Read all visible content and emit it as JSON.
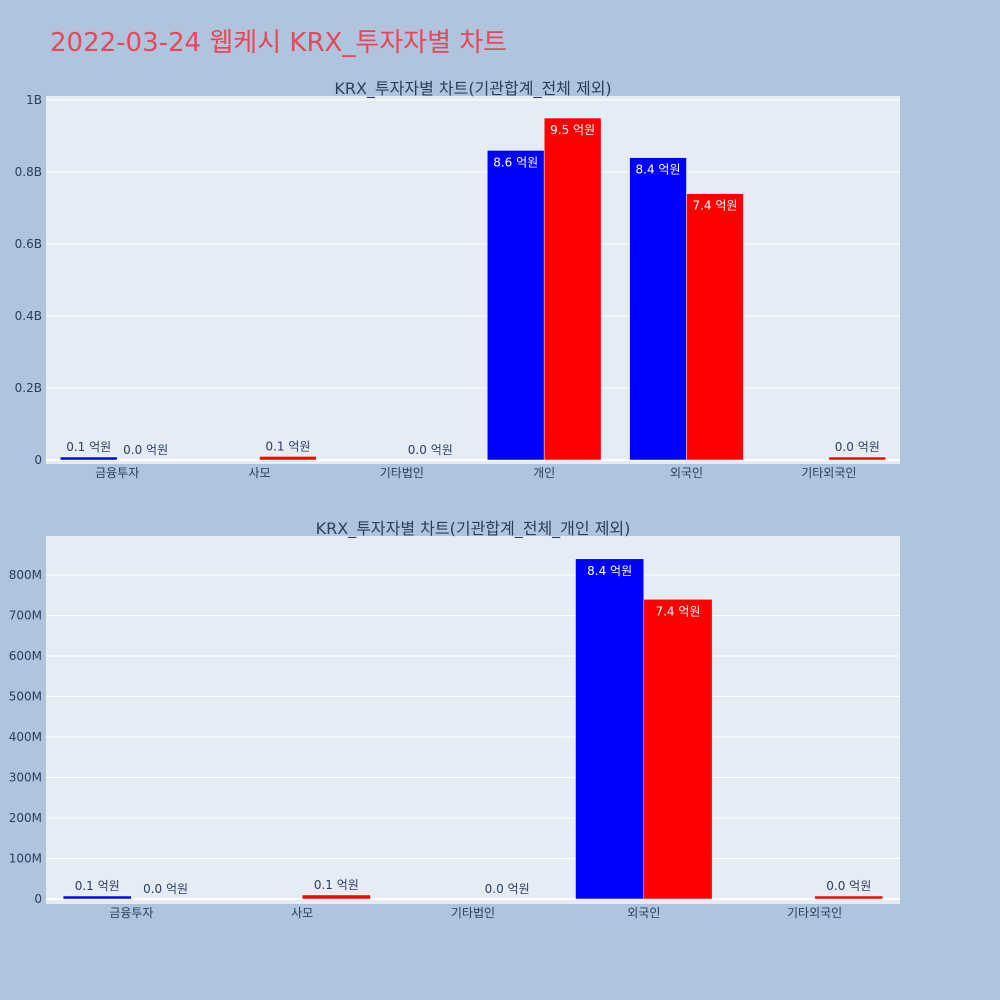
{
  "page": {
    "title": "2022-03-24 웹케시 KRX_투자자별 차트"
  },
  "colors": {
    "background": "#b0c4de",
    "plot_background": "#e5ecf6",
    "title": "#e8465a",
    "series_a": "#0000ff",
    "series_b": "#ff0000",
    "text": "#2a3f5f"
  },
  "chart_data": [
    {
      "type": "bar",
      "title": "KRX_투자자별 차트(기관합계_전체 제외)",
      "categories": [
        "금융투자",
        "사모",
        "기타법인",
        "개인",
        "외국인",
        "기타외국인"
      ],
      "series": [
        {
          "color": "#0000ff",
          "values": [
            5000000,
            0,
            0,
            860000000,
            840000000,
            0
          ],
          "labels": [
            "0.1 억원",
            "",
            "",
            "8.6 억원",
            "8.4 억원",
            ""
          ]
        },
        {
          "color": "#ff0000",
          "values": [
            0,
            10000000,
            0,
            950000000,
            740000000,
            2000000
          ],
          "labels": [
            "0.0 억원",
            "0.1 억원",
            "0.0 억원",
            "9.5 억원",
            "7.4 억원",
            "0.0 억원"
          ]
        }
      ],
      "ylim": [
        0,
        1000000000
      ],
      "yticks": [
        0,
        200000000,
        400000000,
        600000000,
        800000000,
        1000000000
      ],
      "ytick_labels": [
        "0",
        "0.2B",
        "0.4B",
        "0.6B",
        "0.8B",
        "1B"
      ],
      "grid": true,
      "xlabel": "",
      "ylabel": ""
    },
    {
      "type": "bar",
      "title": "KRX_투자자별 차트(기관합계_전체_개인 제외)",
      "categories": [
        "금융투자",
        "사모",
        "기타법인",
        "외국인",
        "기타외국인"
      ],
      "series": [
        {
          "color": "#0000ff",
          "values": [
            5000000,
            0,
            0,
            840000000,
            0
          ],
          "labels": [
            "0.1 억원",
            "",
            "",
            "8.4 억원",
            ""
          ]
        },
        {
          "color": "#ff0000",
          "values": [
            0,
            10000000,
            0,
            740000000,
            2000000
          ],
          "labels": [
            "0.0 억원",
            "0.1 억원",
            "0.0 억원",
            "7.4 억원",
            "0.0 억원"
          ]
        }
      ],
      "ylim": [
        0,
        890000000
      ],
      "yticks": [
        0,
        100000000,
        200000000,
        300000000,
        400000000,
        500000000,
        600000000,
        700000000,
        800000000
      ],
      "ytick_labels": [
        "0",
        "100M",
        "200M",
        "300M",
        "400M",
        "500M",
        "600M",
        "700M",
        "800M"
      ],
      "grid": true,
      "xlabel": "",
      "ylabel": ""
    }
  ]
}
